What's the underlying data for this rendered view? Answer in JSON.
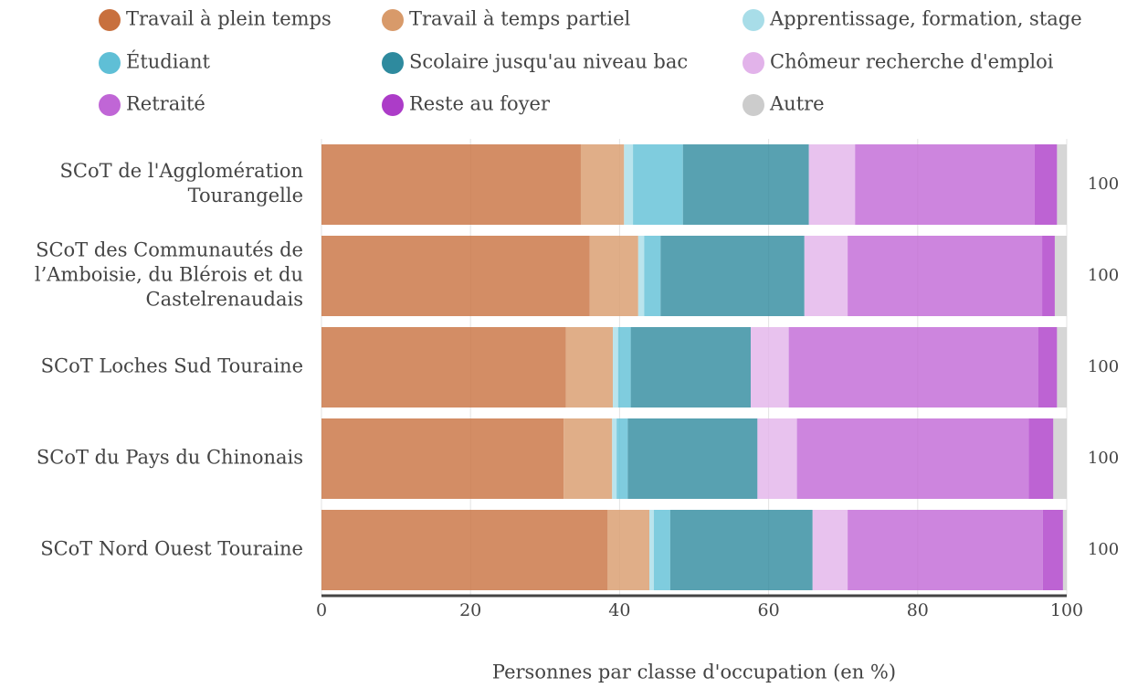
{
  "chart_data": {
    "type": "stacked_barh",
    "categories": [
      [
        "SCoT de l'Agglomération",
        "Tourangelle"
      ],
      [
        "SCoT des Communautés de",
        "l’Amboisie, du Blérois et du",
        "Castelrenaudais"
      ],
      [
        "SCoT Loches Sud Touraine"
      ],
      [
        "SCoT du Pays du Chinonais"
      ],
      [
        "SCoT Nord Ouest Touraine"
      ]
    ],
    "series": [
      {
        "name": "Travail à plein temps",
        "color": "#c8703e",
        "values": [
          34.8,
          36.0,
          32.8,
          32.5,
          38.4
        ]
      },
      {
        "name": "Travail à temps partiel",
        "color": "#d89a6a",
        "values": [
          5.8,
          6.5,
          6.3,
          6.5,
          5.6
        ]
      },
      {
        "name": "Apprentissage, formation, stage",
        "color": "#a8dde8",
        "values": [
          1.2,
          0.8,
          0.7,
          0.6,
          0.6
        ]
      },
      {
        "name": "Étudiant",
        "color": "#5fbfd6",
        "values": [
          6.7,
          2.2,
          1.7,
          1.5,
          2.2
        ]
      },
      {
        "name": "Scolaire jusqu'au niveau bac",
        "color": "#2e8a9e",
        "values": [
          16.9,
          19.3,
          16.1,
          17.4,
          19.1
        ]
      },
      {
        "name": "Chômeur recherche d'emploi",
        "color": "#e2b3ea",
        "values": [
          6.2,
          5.8,
          5.1,
          5.3,
          4.7
        ]
      },
      {
        "name": "Retraité",
        "color": "#c066d6",
        "values": [
          24.1,
          26.1,
          33.5,
          31.1,
          26.2
        ]
      },
      {
        "name": "Reste au foyer",
        "color": "#ac3cc8",
        "values": [
          3.0,
          1.7,
          2.5,
          3.3,
          2.7
        ]
      },
      {
        "name": "Autre",
        "color": "#cccccc",
        "values": [
          1.3,
          1.6,
          1.3,
          1.8,
          0.5
        ]
      }
    ],
    "totals": [
      100,
      100,
      100,
      100,
      100
    ],
    "xlabel": "Personnes par classe d'occupation (en %)",
    "xlim": [
      0,
      100
    ],
    "xticks": [
      0,
      20,
      40,
      60,
      80,
      100
    ],
    "grid": true
  }
}
